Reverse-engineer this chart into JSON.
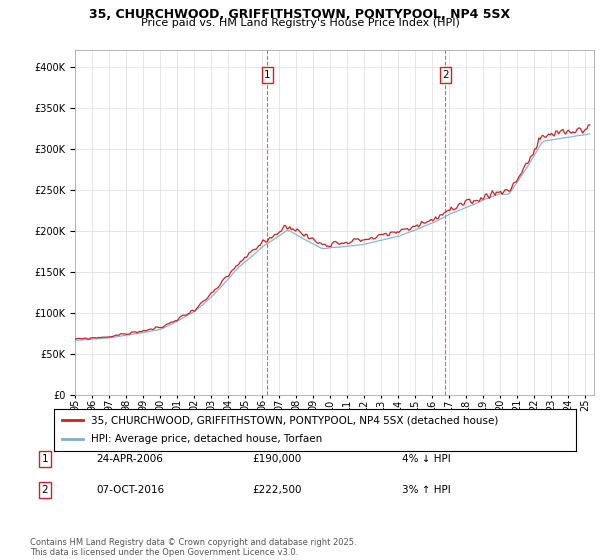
{
  "title": "35, CHURCHWOOD, GRIFFITHSTOWN, PONTYPOOL, NP4 5SX",
  "subtitle": "Price paid vs. HM Land Registry's House Price Index (HPI)",
  "background_color": "#ffffff",
  "grid_color": "#dddddd",
  "legend_label_red": "35, CHURCHWOOD, GRIFFITHSTOWN, PONTYPOOL, NP4 5SX (detached house)",
  "legend_label_blue": "HPI: Average price, detached house, Torfaen",
  "annotation1_date": "24-APR-2006",
  "annotation1_price": "£190,000",
  "annotation1_hpi": "4% ↓ HPI",
  "annotation2_date": "07-OCT-2016",
  "annotation2_price": "£222,500",
  "annotation2_hpi": "3% ↑ HPI",
  "footer": "Contains HM Land Registry data © Crown copyright and database right 2025.\nThis data is licensed under the Open Government Licence v3.0.",
  "ylim": [
    0,
    420000
  ],
  "yticks": [
    0,
    50000,
    100000,
    150000,
    200000,
    250000,
    300000,
    350000,
    400000
  ],
  "xlim_start": 1995,
  "xlim_end": 2025.5,
  "vline1_x": 2006.31,
  "vline2_x": 2016.77,
  "red_color": "#cc2222",
  "blue_color": "#7ab0d4",
  "title_fontsize": 9,
  "subtitle_fontsize": 8,
  "tick_fontsize": 7,
  "legend_fontsize": 7.5,
  "ann_fontsize": 7.5,
  "footer_fontsize": 6
}
